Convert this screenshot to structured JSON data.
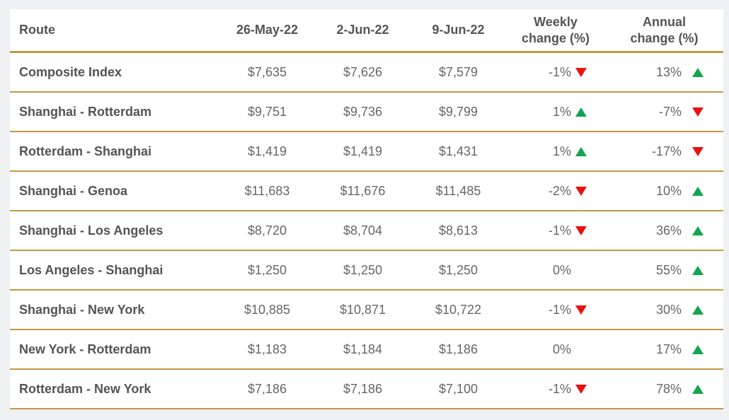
{
  "page": {
    "background_color": "#eef0f2",
    "card_color": "#ffffff",
    "rule_gold_color": "#c09a44",
    "up_green_color": "#12a552",
    "down_red_color": "#ea1111",
    "text_dark_color": "#545454",
    "text_value_color": "#666666"
  },
  "table": {
    "headers": {
      "route": "Route",
      "dates": [
        "26-May-22",
        "2-Jun-22",
        "9-Jun-22"
      ],
      "weekly_line1": "Weekly",
      "weekly_line2": "change (%)",
      "annual_line1": "Annual",
      "annual_line2": "change (%)"
    },
    "rows": [
      {
        "route": "Composite Index",
        "values": [
          "$7,635",
          "$7,626",
          "$7,579"
        ],
        "weekly": {
          "value": "-1%",
          "dir": "down"
        },
        "annual": {
          "value": "13%",
          "dir": "up"
        }
      },
      {
        "route": "Shanghai - Rotterdam",
        "values": [
          "$9,751",
          "$9,736",
          "$9,799"
        ],
        "weekly": {
          "value": "1%",
          "dir": "up"
        },
        "annual": {
          "value": "-7%",
          "dir": "down"
        }
      },
      {
        "route": "Rotterdam - Shanghai",
        "values": [
          "$1,419",
          "$1,419",
          "$1,431"
        ],
        "weekly": {
          "value": "1%",
          "dir": "up"
        },
        "annual": {
          "value": "-17%",
          "dir": "down"
        }
      },
      {
        "route": "Shanghai - Genoa",
        "values": [
          "$11,683",
          "$11,676",
          "$11,485"
        ],
        "weekly": {
          "value": "-2%",
          "dir": "down"
        },
        "annual": {
          "value": "10%",
          "dir": "up"
        }
      },
      {
        "route": "Shanghai - Los Angeles",
        "values": [
          "$8,720",
          "$8,704",
          "$8,613"
        ],
        "weekly": {
          "value": "-1%",
          "dir": "down"
        },
        "annual": {
          "value": "36%",
          "dir": "up"
        }
      },
      {
        "route": "Los Angeles - Shanghai",
        "values": [
          "$1,250",
          "$1,250",
          "$1,250"
        ],
        "weekly": {
          "value": "0%",
          "dir": "none"
        },
        "annual": {
          "value": "55%",
          "dir": "up"
        }
      },
      {
        "route": "Shanghai - New York",
        "values": [
          "$10,885",
          "$10,871",
          "$10,722"
        ],
        "weekly": {
          "value": "-1%",
          "dir": "down"
        },
        "annual": {
          "value": "30%",
          "dir": "up"
        }
      },
      {
        "route": "New York - Rotterdam",
        "values": [
          "$1,183",
          "$1,184",
          "$1,186"
        ],
        "weekly": {
          "value": "0%",
          "dir": "none"
        },
        "annual": {
          "value": "17%",
          "dir": "up"
        }
      },
      {
        "route": "Rotterdam - New York",
        "values": [
          "$7,186",
          "$7,186",
          "$7,100"
        ],
        "weekly": {
          "value": "-1%",
          "dir": "down"
        },
        "annual": {
          "value": "78%",
          "dir": "up"
        }
      }
    ]
  },
  "chart_data": {
    "type": "table",
    "columns": [
      "Route",
      "26-May-22",
      "2-Jun-22",
      "9-Jun-22",
      "Weekly change (%)",
      "Annual change (%)"
    ],
    "rows": [
      [
        "Composite Index",
        7635,
        7626,
        7579,
        -1,
        13
      ],
      [
        "Shanghai - Rotterdam",
        9751,
        9736,
        9799,
        1,
        -7
      ],
      [
        "Rotterdam - Shanghai",
        1419,
        1419,
        1431,
        1,
        -17
      ],
      [
        "Shanghai - Genoa",
        11683,
        11676,
        11485,
        -2,
        10
      ],
      [
        "Shanghai - Los Angeles",
        8720,
        8704,
        8613,
        -1,
        36
      ],
      [
        "Los Angeles - Shanghai",
        1250,
        1250,
        1250,
        0,
        55
      ],
      [
        "Shanghai - New York",
        10885,
        10871,
        10722,
        -1,
        30
      ],
      [
        "New York - Rotterdam",
        1183,
        1184,
        1186,
        0,
        17
      ],
      [
        "Rotterdam - New York",
        7186,
        7186,
        7100,
        -1,
        78
      ]
    ],
    "rate_unit": "USD",
    "change_unit": "percent"
  }
}
